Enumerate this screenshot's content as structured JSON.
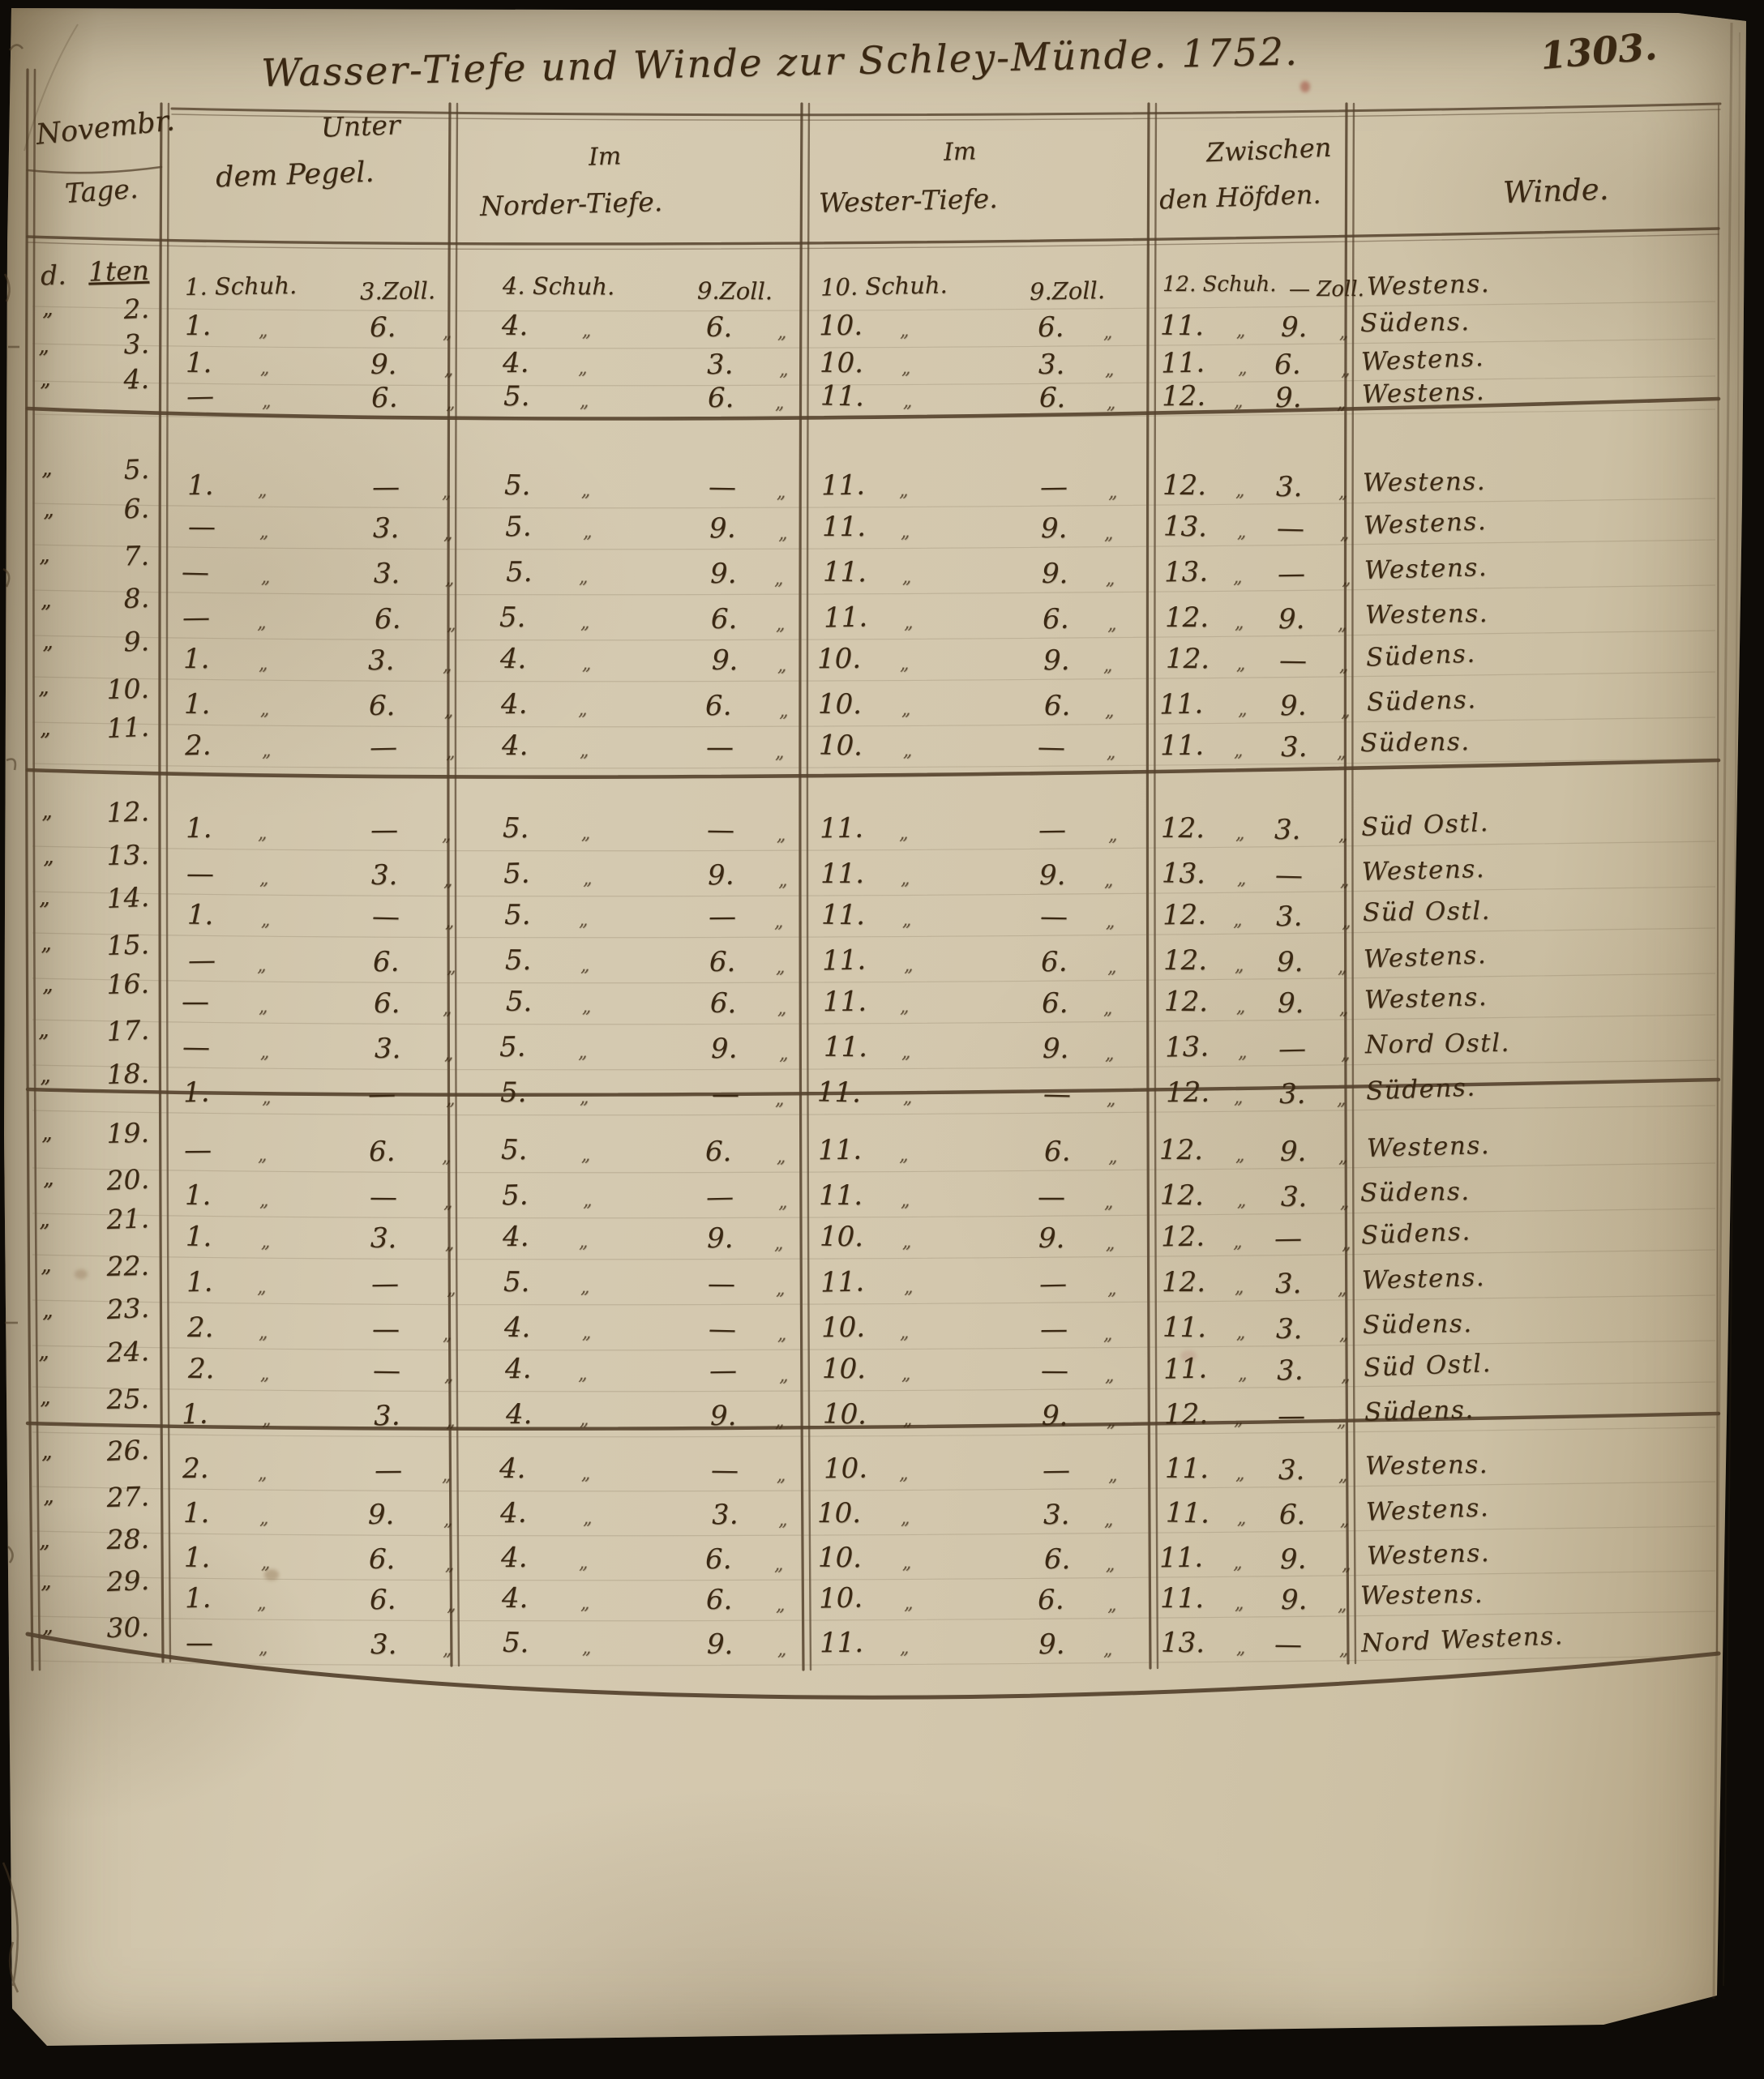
{
  "page": {
    "number": "1303.",
    "title": "Wasser-Tiefe und Winde zur Schley-Münde. 1752."
  },
  "table": {
    "headers": {
      "days": {
        "line1": "Novembr.",
        "line2": "Tage."
      },
      "col2": {
        "line1": "Unter",
        "line2": "dem Pegel."
      },
      "col3": {
        "line1": "Im",
        "line2": "Norder-Tiefe."
      },
      "col4": {
        "line1": "Im",
        "line2": "Wester-Tiefe."
      },
      "col5": {
        "line1": "Zwischen",
        "line2": "den Höfden."
      },
      "col6": {
        "line2": "Winde."
      }
    },
    "units": {
      "schuh": "Schuh.",
      "zoll": "Zoll."
    },
    "ditto": "„",
    "blank": "—",
    "columns": [
      "unter-dem-pegel",
      "norder-tiefe",
      "wester-tiefe",
      "zwischen-den-hoefden"
    ],
    "rows": [
      {
        "prefix": "d.",
        "day": "1ten",
        "values": [
          [
            "1",
            "3"
          ],
          [
            "4",
            "9"
          ],
          [
            "10",
            "9"
          ],
          [
            "12",
            "—"
          ]
        ],
        "wind": "Westens."
      },
      {
        "prefix": "„",
        "day": "2.",
        "values": [
          [
            "1",
            "6"
          ],
          [
            "4",
            "6"
          ],
          [
            "10",
            "6"
          ],
          [
            "11",
            "9"
          ]
        ],
        "wind": "Südens."
      },
      {
        "prefix": "„",
        "day": "3.",
        "values": [
          [
            "1",
            "9"
          ],
          [
            "4",
            "3"
          ],
          [
            "10",
            "3"
          ],
          [
            "11",
            "6"
          ]
        ],
        "wind": "Westens."
      },
      {
        "prefix": "„",
        "day": "4.",
        "values": [
          [
            "—",
            "6"
          ],
          [
            "5",
            "6"
          ],
          [
            "11",
            "6"
          ],
          [
            "12",
            "9"
          ]
        ],
        "wind": "Westens."
      },
      {
        "prefix": "„",
        "day": "5.",
        "values": [
          [
            "1",
            "—"
          ],
          [
            "5",
            "—"
          ],
          [
            "11",
            "—"
          ],
          [
            "12",
            "3"
          ]
        ],
        "wind": "Westens."
      },
      {
        "prefix": "„",
        "day": "6.",
        "values": [
          [
            "—",
            "3"
          ],
          [
            "5",
            "9"
          ],
          [
            "11",
            "9"
          ],
          [
            "13",
            "—"
          ]
        ],
        "wind": "Westens."
      },
      {
        "prefix": "„",
        "day": "7.",
        "values": [
          [
            "—",
            "3"
          ],
          [
            "5",
            "9"
          ],
          [
            "11",
            "9"
          ],
          [
            "13",
            "—"
          ]
        ],
        "wind": "Westens."
      },
      {
        "prefix": "„",
        "day": "8.",
        "values": [
          [
            "—",
            "6"
          ],
          [
            "5",
            "6"
          ],
          [
            "11",
            "6"
          ],
          [
            "12",
            "9"
          ]
        ],
        "wind": "Westens."
      },
      {
        "prefix": "„",
        "day": "9.",
        "values": [
          [
            "1",
            "3"
          ],
          [
            "4",
            "9"
          ],
          [
            "10",
            "9"
          ],
          [
            "12",
            "—"
          ]
        ],
        "wind": "Südens."
      },
      {
        "prefix": "„",
        "day": "10.",
        "values": [
          [
            "1",
            "6"
          ],
          [
            "4",
            "6"
          ],
          [
            "10",
            "6"
          ],
          [
            "11",
            "9"
          ]
        ],
        "wind": "Südens."
      },
      {
        "prefix": "„",
        "day": "11.",
        "values": [
          [
            "2",
            "—"
          ],
          [
            "4",
            "—"
          ],
          [
            "10",
            "—"
          ],
          [
            "11",
            "3"
          ]
        ],
        "wind": "Südens."
      },
      {
        "prefix": "„",
        "day": "12.",
        "values": [
          [
            "1",
            "—"
          ],
          [
            "5",
            "—"
          ],
          [
            "11",
            "—"
          ],
          [
            "12",
            "3"
          ]
        ],
        "wind": "Süd Ostl."
      },
      {
        "prefix": "„",
        "day": "13.",
        "values": [
          [
            "—",
            "3"
          ],
          [
            "5",
            "9"
          ],
          [
            "11",
            "9"
          ],
          [
            "13",
            "—"
          ]
        ],
        "wind": "Westens."
      },
      {
        "prefix": "„",
        "day": "14.",
        "values": [
          [
            "1",
            "—"
          ],
          [
            "5",
            "—"
          ],
          [
            "11",
            "—"
          ],
          [
            "12",
            "3"
          ]
        ],
        "wind": "Süd Ostl."
      },
      {
        "prefix": "„",
        "day": "15.",
        "values": [
          [
            "—",
            "6"
          ],
          [
            "5",
            "6"
          ],
          [
            "11",
            "6"
          ],
          [
            "12",
            "9"
          ]
        ],
        "wind": "Westens."
      },
      {
        "prefix": "„",
        "day": "16.",
        "values": [
          [
            "—",
            "6"
          ],
          [
            "5",
            "6"
          ],
          [
            "11",
            "6"
          ],
          [
            "12",
            "9"
          ]
        ],
        "wind": "Westens."
      },
      {
        "prefix": "„",
        "day": "17.",
        "values": [
          [
            "—",
            "3"
          ],
          [
            "5",
            "9"
          ],
          [
            "11",
            "9"
          ],
          [
            "13",
            "—"
          ]
        ],
        "wind": "Nord Ostl."
      },
      {
        "prefix": "„",
        "day": "18.",
        "values": [
          [
            "1",
            "—"
          ],
          [
            "5",
            "—"
          ],
          [
            "11",
            "—"
          ],
          [
            "12",
            "3"
          ]
        ],
        "wind": "Südens."
      },
      {
        "prefix": "„",
        "day": "19.",
        "values": [
          [
            "—",
            "6"
          ],
          [
            "5",
            "6"
          ],
          [
            "11",
            "6"
          ],
          [
            "12",
            "9"
          ]
        ],
        "wind": "Westens."
      },
      {
        "prefix": "„",
        "day": "20.",
        "values": [
          [
            "1",
            "—"
          ],
          [
            "5",
            "—"
          ],
          [
            "11",
            "—"
          ],
          [
            "12",
            "3"
          ]
        ],
        "wind": "Südens."
      },
      {
        "prefix": "„",
        "day": "21.",
        "values": [
          [
            "1",
            "3"
          ],
          [
            "4",
            "9"
          ],
          [
            "10",
            "9"
          ],
          [
            "12",
            "—"
          ]
        ],
        "wind": "Südens."
      },
      {
        "prefix": "„",
        "day": "22.",
        "values": [
          [
            "1",
            "—"
          ],
          [
            "5",
            "—"
          ],
          [
            "11",
            "—"
          ],
          [
            "12",
            "3"
          ]
        ],
        "wind": "Westens."
      },
      {
        "prefix": "„",
        "day": "23.",
        "values": [
          [
            "2",
            "—"
          ],
          [
            "4",
            "—"
          ],
          [
            "10",
            "—"
          ],
          [
            "11",
            "3"
          ]
        ],
        "wind": "Südens."
      },
      {
        "prefix": "„",
        "day": "24.",
        "values": [
          [
            "2",
            "—"
          ],
          [
            "4",
            "—"
          ],
          [
            "10",
            "—"
          ],
          [
            "11",
            "3"
          ]
        ],
        "wind": "Süd Ostl."
      },
      {
        "prefix": "„",
        "day": "25.",
        "values": [
          [
            "1",
            "3"
          ],
          [
            "4",
            "9"
          ],
          [
            "10",
            "9"
          ],
          [
            "12",
            "—"
          ]
        ],
        "wind": "Südens."
      },
      {
        "prefix": "„",
        "day": "26.",
        "values": [
          [
            "2",
            "—"
          ],
          [
            "4",
            "—"
          ],
          [
            "10",
            "—"
          ],
          [
            "11",
            "3"
          ]
        ],
        "wind": "Westens."
      },
      {
        "prefix": "„",
        "day": "27.",
        "values": [
          [
            "1",
            "9"
          ],
          [
            "4",
            "3"
          ],
          [
            "10",
            "3"
          ],
          [
            "11",
            "6"
          ]
        ],
        "wind": "Westens."
      },
      {
        "prefix": "„",
        "day": "28.",
        "values": [
          [
            "1",
            "6"
          ],
          [
            "4",
            "6"
          ],
          [
            "10",
            "6"
          ],
          [
            "11",
            "9"
          ]
        ],
        "wind": "Westens."
      },
      {
        "prefix": "„",
        "day": "29.",
        "values": [
          [
            "1",
            "6"
          ],
          [
            "4",
            "6"
          ],
          [
            "10",
            "6"
          ],
          [
            "11",
            "9"
          ]
        ],
        "wind": "Westens."
      },
      {
        "prefix": "„",
        "day": "30.",
        "values": [
          [
            "—",
            "3"
          ],
          [
            "5",
            "9"
          ],
          [
            "11",
            "9"
          ],
          [
            "13",
            "—"
          ]
        ],
        "wind": "Nord Westens."
      }
    ]
  },
  "colors": {
    "ink": "#3a2813",
    "paper": "#d3c7ad",
    "rule": "#54412c"
  }
}
